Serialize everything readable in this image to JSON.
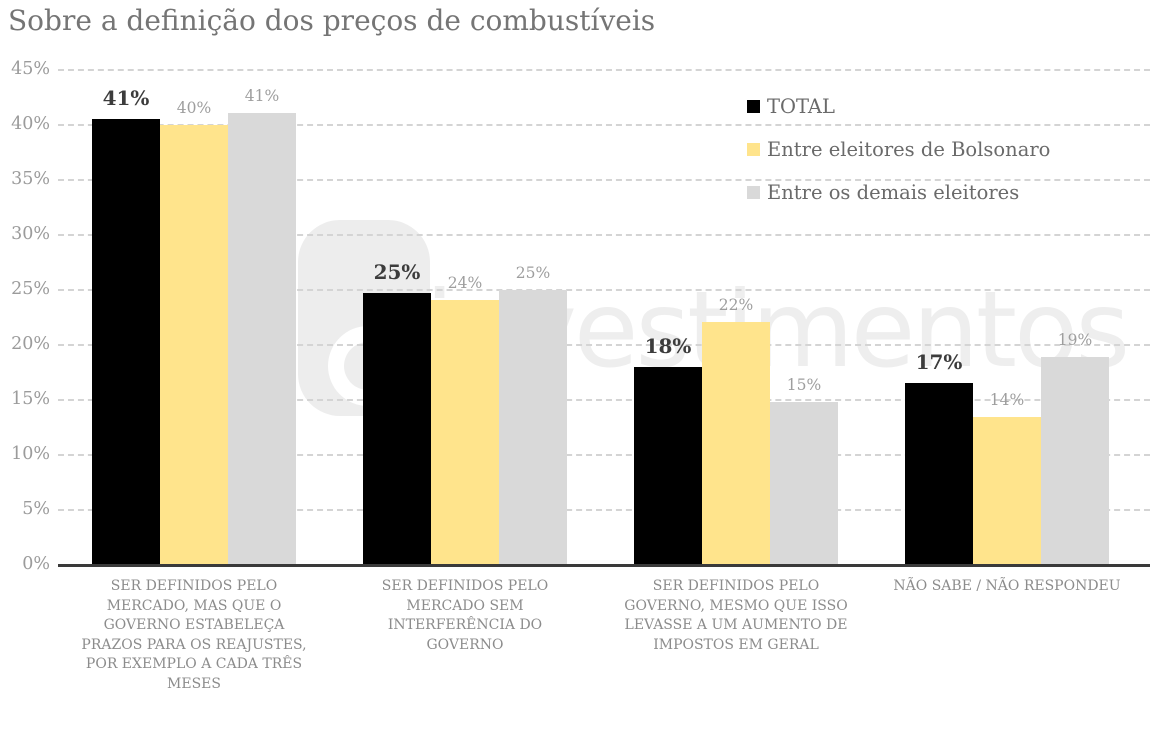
{
  "title": "Sobre a definição dos preços de combustíveis",
  "watermark": {
    "text": "investimentos",
    "logo": "p-logomark"
  },
  "chart_data": {
    "type": "bar",
    "title": "Sobre a definição dos preços de combustíveis",
    "unit": "%",
    "categories": [
      "SER DEFINIDOS PELO\nMERCADO, MAS QUE O\nGOVERNO ESTABELEÇA\nPRAZOS PARA OS REAJUSTES,\nPOR EXEMPLO A CADA TRÊS\nMESES",
      "SER DEFINIDOS PELO\nMERCADO SEM\nINTERFERÊNCIA DO\nGOVERNO",
      "SER DEFINIDOS PELO\nGOVERNO, MESMO QUE ISSO\nLEVASSE A UM AUMENTO DE\nIMPOSTOS EM GERAL",
      "NÃO SABE / NÃO RESPONDEU"
    ],
    "series": [
      {
        "name": "TOTAL",
        "color": "#000000",
        "values": [
          41,
          25,
          18,
          17
        ],
        "bar_heights_pct": [
          40.6,
          24.7,
          18.0,
          16.5
        ],
        "emphasized_labels": true
      },
      {
        "name": "Entre eleitores de Bolsonaro",
        "color": "#FFE48C",
        "values": [
          40,
          24,
          22,
          14
        ],
        "bar_heights_pct": [
          40.0,
          24.1,
          22.1,
          13.4
        ],
        "emphasized_labels": false
      },
      {
        "name": "Entre os demais eleitores",
        "color": "#D9D9D9",
        "values": [
          41,
          25,
          15,
          19
        ],
        "bar_heights_pct": [
          41.1,
          25.0,
          14.8,
          18.9
        ],
        "emphasized_labels": false
      }
    ],
    "y_axis": {
      "min": 0,
      "max": 45,
      "tick_step": 5,
      "tick_labels": [
        "0%",
        "5%",
        "10%",
        "15%",
        "20%",
        "25%",
        "30%",
        "35%",
        "40%",
        "45%"
      ]
    },
    "grid": {
      "horizontal": "dashed",
      "baseline": "solid"
    },
    "legend_position": "top-right"
  },
  "colors": {
    "title_text": "#757575",
    "tick_text": "#9B9B9B",
    "grid_line": "#D4D4D4",
    "baseline": "#3A3A3A",
    "category_text": "#8C8C8C",
    "legend_text": "#6A6A6A",
    "value_label_total": "#3C3C3C",
    "value_label_secondary": "#9E9E9E",
    "series_total": "#000000",
    "series_bolsonaro": "#FFE48C",
    "series_demais": "#D9D9D9",
    "watermark": "#EDEDED"
  }
}
